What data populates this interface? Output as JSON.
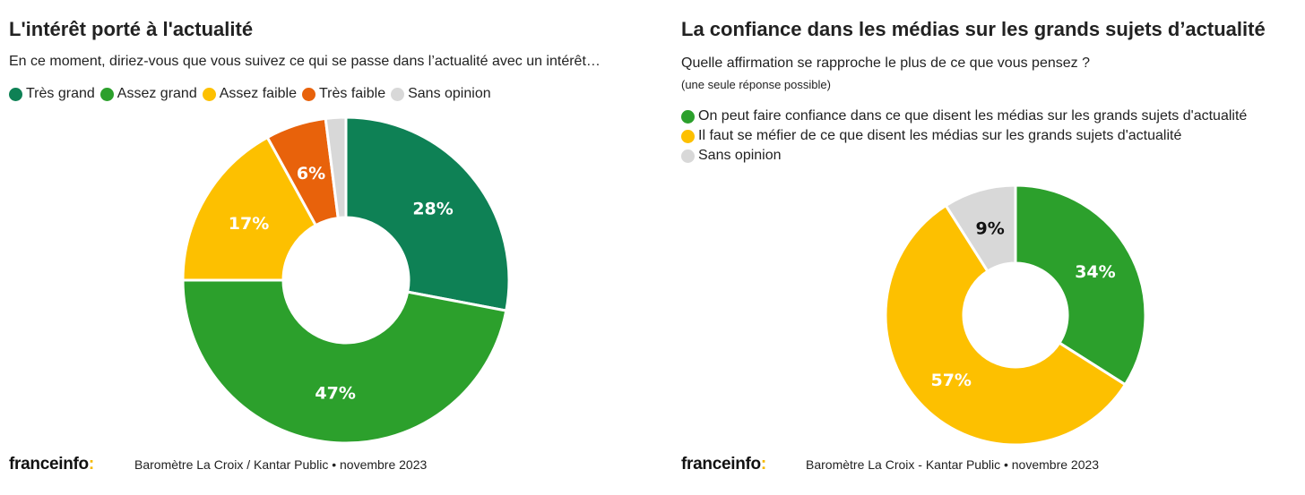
{
  "chart_data": [
    {
      "type": "pie",
      "title": "L'intérêt porté à l'actualité",
      "subtitle": "En ce moment, diriez-vous que vous suivez ce qui se passe dans l’actualité avec un intérêt…",
      "categories": [
        "Très grand",
        "Assez grand",
        "Assez faible",
        "Très faible",
        "Sans opinion"
      ],
      "values": [
        28,
        47,
        17,
        6,
        2
      ],
      "labels": [
        "28%",
        "47%",
        "17%",
        "6%",
        ""
      ],
      "colors": [
        "#0e8155",
        "#2ca02c",
        "#fdc000",
        "#e8620b",
        "#d8d8d8"
      ],
      "label_colors": [
        "#fff",
        "#fff",
        "#fff",
        "#fff",
        "#000"
      ],
      "legend": "top-left",
      "donut": true
    },
    {
      "type": "pie",
      "title": "La confiance dans les médias sur les grands sujets d’actualité",
      "subtitle": "Quelle affirmation se rapproche le plus de ce que vous pensez ?",
      "note": "(une seule réponse possible)",
      "categories": [
        "On peut faire confiance dans ce que disent les médias sur les grands sujets d'actualité",
        "Il faut se méfier de ce que disent les médias sur les grands sujets d'actualité",
        "Sans opinion"
      ],
      "values": [
        34,
        57,
        9
      ],
      "labels": [
        "34%",
        "57%",
        "9%"
      ],
      "colors": [
        "#2ca02c",
        "#fdc000",
        "#d8d8d8"
      ],
      "label_colors": [
        "#fff",
        "#fff",
        "#111"
      ],
      "legend": "top-left",
      "donut": true
    }
  ],
  "footer": {
    "logo_main": "franceinfo",
    "logo_colon": ":",
    "source_left": "Baromètre La Croix / Kantar Public • novembre 2023",
    "source_right": "Baromètre La Croix - Kantar Public • novembre 2023"
  }
}
